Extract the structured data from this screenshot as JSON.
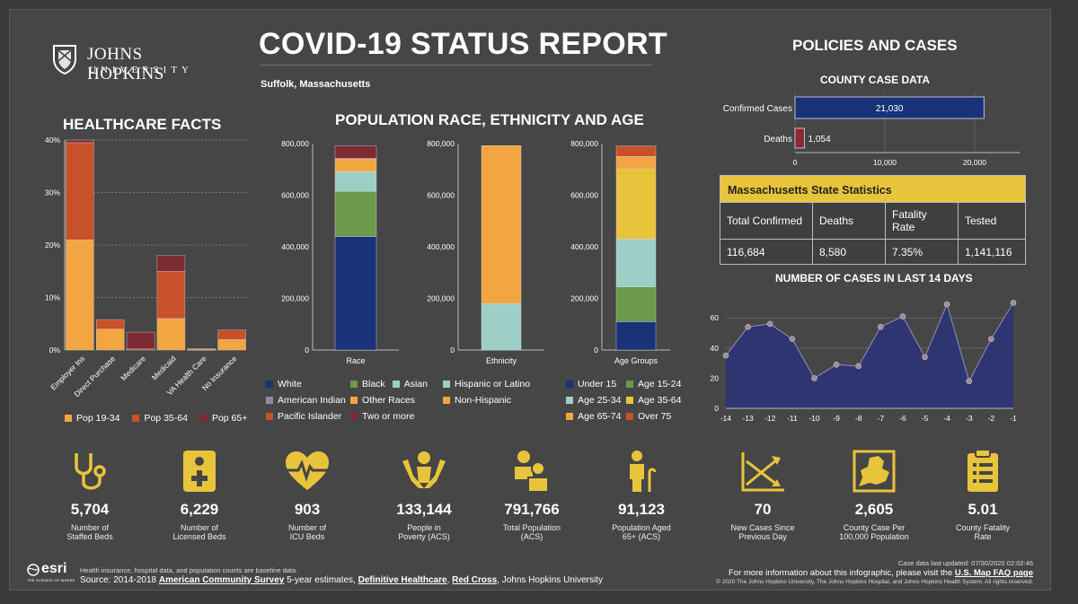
{
  "header": {
    "logo_line1": "JOHNS HOPKINS",
    "logo_line2": "UNIVERSITY",
    "title": "COVID-19 STATUS REPORT",
    "location": "Suffolk, Massachusetts",
    "policies_title": "POLICIES AND CASES"
  },
  "sections": {
    "healthcare": "HEALTHCARE FACTS",
    "population": "POPULATION RACE, ETHNICITY AND AGE",
    "county_case": "COUNTY CASE DATA",
    "cases14": "NUMBER OF CASES IN LAST 14 DAYS"
  },
  "colors": {
    "pop1934": "#f2a541",
    "pop3564": "#c8502a",
    "pop65": "#7d2a35",
    "white": "#1a3278",
    "black": "#6b9a4a",
    "asian": "#9ecfc6",
    "other": "#f2a541",
    "twoplus": "#7d2a35",
    "hispanic": "#9ecfc6",
    "nonhispanic": "#f2a541",
    "under15": "#1a3278",
    "a1524": "#6b9a4a",
    "a2534": "#9ecfc6",
    "a3564": "#e8c43c",
    "a6574": "#f2a541",
    "over75": "#c8502a",
    "confirmed": "#1a3278",
    "deaths": "#8a2a35",
    "area": "#2e3570",
    "accent": "#e8c43c"
  },
  "legends": {
    "healthcare": [
      "Pop 19-34",
      "Pop 35-64",
      "Pop 65+"
    ],
    "race": [
      "White",
      "Black",
      "Asian",
      "American Indian",
      "Other Races",
      "Pacific Islander",
      "Two or more"
    ],
    "ethnicity": [
      "Hispanic or Latino",
      "Non-Hispanic"
    ],
    "age": [
      "Under 15",
      "Age 15-24",
      "Age 25-34",
      "Age 35-64",
      "Age 65-74",
      "Over 75"
    ]
  },
  "chart_data": [
    {
      "id": "healthcare",
      "type": "bar",
      "stacked": true,
      "categories": [
        "Employer Ins",
        "Direct Purchase",
        "Medicare",
        "Medicaid",
        "VA Health Care",
        "No Insurance"
      ],
      "series": [
        {
          "name": "Pop 19-34",
          "values": [
            21,
            4,
            0,
            6,
            0.1,
            2
          ]
        },
        {
          "name": "Pop 35-64",
          "values": [
            18.5,
            1.8,
            0.2,
            9,
            0.1,
            1.8
          ]
        },
        {
          "name": "Pop 65+",
          "values": [
            0.5,
            0,
            3.2,
            3,
            0.1,
            0
          ]
        }
      ],
      "yticks": [
        "0%",
        "10%",
        "20%",
        "30%",
        "40%"
      ],
      "ylim": [
        0,
        40
      ]
    },
    {
      "id": "race",
      "type": "bar",
      "stacked": true,
      "xlabel": "Race",
      "categories": [
        "Race"
      ],
      "series": [
        {
          "name": "White",
          "values": [
            440000
          ]
        },
        {
          "name": "Black",
          "values": [
            175000
          ]
        },
        {
          "name": "Asian",
          "values": [
            75000
          ]
        },
        {
          "name": "American Indian",
          "values": [
            2000
          ]
        },
        {
          "name": "Other Races",
          "values": [
            50000
          ]
        },
        {
          "name": "Pacific Islander",
          "values": [
            500
          ]
        },
        {
          "name": "Two or more",
          "values": [
            49000
          ]
        }
      ],
      "yticks": [
        "0",
        "200,000",
        "400,000",
        "600,000",
        "800,000"
      ],
      "ylim": [
        0,
        800000
      ]
    },
    {
      "id": "ethnicity",
      "type": "bar",
      "stacked": true,
      "xlabel": "Ethnicity",
      "categories": [
        "Ethnicity"
      ],
      "series": [
        {
          "name": "Hispanic or Latino",
          "values": [
            180000
          ]
        },
        {
          "name": "Non-Hispanic",
          "values": [
            612000
          ]
        }
      ],
      "yticks": [
        "0",
        "200,000",
        "400,000",
        "600,000",
        "800,000"
      ],
      "ylim": [
        0,
        800000
      ]
    },
    {
      "id": "age",
      "type": "bar",
      "stacked": true,
      "xlabel": "Age Groups",
      "categories": [
        "Age Groups"
      ],
      "series": [
        {
          "name": "Under 15",
          "values": [
            110000
          ]
        },
        {
          "name": "Age 15-24",
          "values": [
            135000
          ]
        },
        {
          "name": "Age 25-34",
          "values": [
            185000
          ]
        },
        {
          "name": "Age 35-64",
          "values": [
            270000
          ]
        },
        {
          "name": "Age 65-74",
          "values": [
            50000
          ]
        },
        {
          "name": "Over 75",
          "values": [
            41000
          ]
        }
      ],
      "yticks": [
        "0",
        "200,000",
        "400,000",
        "600,000",
        "800,000"
      ],
      "ylim": [
        0,
        800000
      ]
    },
    {
      "id": "county",
      "type": "bar",
      "orientation": "horizontal",
      "categories": [
        "Confirmed Cases",
        "Deaths"
      ],
      "values": [
        21030,
        1054
      ],
      "value_labels": [
        "21,030",
        "1,054"
      ],
      "xticks": [
        "0",
        "10,000",
        "20,000"
      ],
      "xlim": [
        0,
        25000
      ]
    },
    {
      "id": "cases14",
      "type": "area",
      "x": [
        "-14",
        "-13",
        "-12",
        "-11",
        "-10",
        "-9",
        "-8",
        "-7",
        "-6",
        "-5",
        "-4",
        "-3",
        "-2",
        "-1"
      ],
      "values": [
        35,
        54,
        56,
        46,
        20,
        29,
        28,
        54,
        61,
        34,
        69,
        18,
        46,
        70
      ],
      "yticks": [
        "0",
        "20",
        "40",
        "60"
      ],
      "ylim": [
        0,
        75
      ]
    }
  ],
  "mass_table": {
    "title": "Massachusetts State Statistics",
    "headers": [
      "Total Confirmed",
      "Deaths",
      "Fatality Rate",
      "Tested"
    ],
    "values": [
      "116,684",
      "8,580",
      "7.35%",
      "1,141,116"
    ]
  },
  "stats": [
    {
      "value": "5,704",
      "label1": "Number of",
      "label2": "Staffed Beds",
      "icon": "stethoscope-icon"
    },
    {
      "value": "6,229",
      "label1": "Number of",
      "label2": "Licensed Beds",
      "icon": "hospital-bed-icon"
    },
    {
      "value": "903",
      "label1": "Number of",
      "label2": "ICU Beds",
      "icon": "heartbeat-icon"
    },
    {
      "value": "133,144",
      "label1": "People in",
      "label2": "Poverty (ACS)",
      "icon": "hands-person-icon"
    },
    {
      "value": "791,766",
      "label1": "Total Population",
      "label2": "(ACS)",
      "icon": "people-icon"
    },
    {
      "value": "91,123",
      "label1": "Population Aged",
      "label2": "65+ (ACS)",
      "icon": "elderly-icon"
    },
    {
      "value": "70",
      "label1": "New Cases Since",
      "label2": "Previous Day",
      "icon": "trend-chart-icon"
    },
    {
      "value": "2,605",
      "label1": "County Case Per",
      "label2": "100,000 Population",
      "icon": "county-map-icon"
    },
    {
      "value": "5.01",
      "label1": "County Fatality",
      "label2": "Rate",
      "icon": "clipboard-icon"
    }
  ],
  "footer": {
    "esri": "esri",
    "esri_tag": "THE SCIENCE OF WHERE",
    "note": "Health insurance, hospital data, and population counts are baseline data.",
    "source_prefix": "Source: 2014-2018",
    "source_link1": "American Community Survey",
    "source_mid": "5-year estimates,",
    "source_link2": "Definitive Healthcare",
    "source_link3": "Red Cross",
    "source_suffix": ", Johns Hopkins University",
    "updated": "Case data last updated: 07/30/2020 02:02:46",
    "more_info": "For more information about this infographic, please visit the",
    "faq_link": "U.S. Map FAQ page",
    "copyright": "© 2020 The Johns Hopkins University, The Johns Hopkins Hospital, and Johns Hopkins Health System. All rights reserved."
  }
}
